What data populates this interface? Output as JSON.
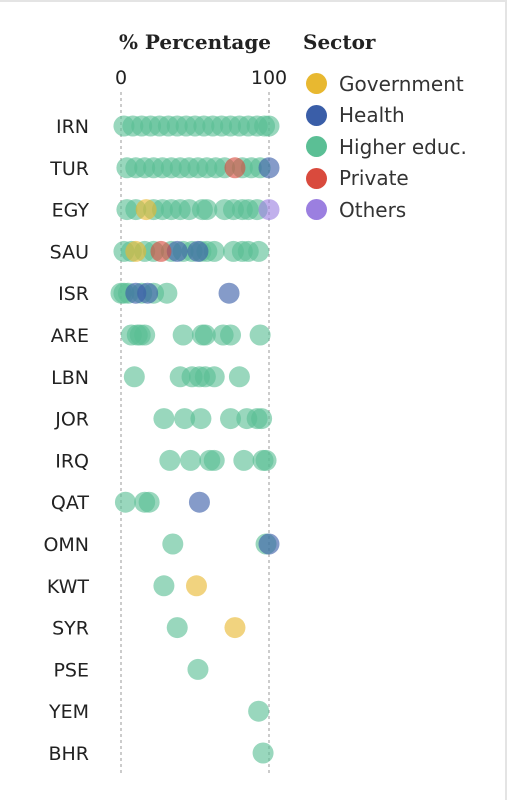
{
  "chart_data": {
    "type": "scatter",
    "xlabel": "% Percentage",
    "xlim": [
      0,
      100
    ],
    "xticks": [
      0,
      100
    ],
    "grid": "vertical dashed at 0 and 100",
    "legend_title": "Sector",
    "legend_position": "top-right",
    "categories": [
      "IRN",
      "TUR",
      "EGY",
      "SAU",
      "ISR",
      "ARE",
      "LBN",
      "JOR",
      "IRQ",
      "QAT",
      "OMN",
      "KWT",
      "SYR",
      "PSE",
      "YEM",
      "BHR"
    ],
    "series": [
      {
        "name": "Government",
        "color": "#e8b830",
        "points": [
          {
            "c": "EGY",
            "x": 17
          },
          {
            "c": "SAU",
            "x": 10
          },
          {
            "c": "KWT",
            "x": 51
          },
          {
            "c": "SYR",
            "x": 77
          }
        ]
      },
      {
        "name": "Health",
        "color": "#3a5ea8",
        "points": [
          {
            "c": "TUR",
            "x": 100
          },
          {
            "c": "SAU",
            "x": 38
          },
          {
            "c": "SAU",
            "x": 52
          },
          {
            "c": "ISR",
            "x": 10
          },
          {
            "c": "ISR",
            "x": 18
          },
          {
            "c": "ISR",
            "x": 73
          },
          {
            "c": "QAT",
            "x": 53
          },
          {
            "c": "OMN",
            "x": 100
          }
        ]
      },
      {
        "name": "Higher educ.",
        "color": "#5bbf95",
        "points": [
          {
            "c": "IRN",
            "x": 2
          },
          {
            "c": "IRN",
            "x": 8
          },
          {
            "c": "IRN",
            "x": 14
          },
          {
            "c": "IRN",
            "x": 20
          },
          {
            "c": "IRN",
            "x": 26
          },
          {
            "c": "IRN",
            "x": 32
          },
          {
            "c": "IRN",
            "x": 38
          },
          {
            "c": "IRN",
            "x": 44
          },
          {
            "c": "IRN",
            "x": 50
          },
          {
            "c": "IRN",
            "x": 56
          },
          {
            "c": "IRN",
            "x": 62
          },
          {
            "c": "IRN",
            "x": 68
          },
          {
            "c": "IRN",
            "x": 74
          },
          {
            "c": "IRN",
            "x": 80
          },
          {
            "c": "IRN",
            "x": 86
          },
          {
            "c": "IRN",
            "x": 92
          },
          {
            "c": "IRN",
            "x": 97
          },
          {
            "c": "IRN",
            "x": 100
          },
          {
            "c": "TUR",
            "x": 4
          },
          {
            "c": "TUR",
            "x": 10
          },
          {
            "c": "TUR",
            "x": 16
          },
          {
            "c": "TUR",
            "x": 22
          },
          {
            "c": "TUR",
            "x": 28
          },
          {
            "c": "TUR",
            "x": 34
          },
          {
            "c": "TUR",
            "x": 40
          },
          {
            "c": "TUR",
            "x": 46
          },
          {
            "c": "TUR",
            "x": 52
          },
          {
            "c": "TUR",
            "x": 58
          },
          {
            "c": "TUR",
            "x": 64
          },
          {
            "c": "TUR",
            "x": 70
          },
          {
            "c": "TUR",
            "x": 82
          },
          {
            "c": "TUR",
            "x": 88
          },
          {
            "c": "TUR",
            "x": 94
          },
          {
            "c": "EGY",
            "x": 4
          },
          {
            "c": "EGY",
            "x": 10
          },
          {
            "c": "EGY",
            "x": 22
          },
          {
            "c": "EGY",
            "x": 28
          },
          {
            "c": "EGY",
            "x": 34
          },
          {
            "c": "EGY",
            "x": 40
          },
          {
            "c": "EGY",
            "x": 46
          },
          {
            "c": "EGY",
            "x": 55
          },
          {
            "c": "EGY",
            "x": 58
          },
          {
            "c": "EGY",
            "x": 70
          },
          {
            "c": "EGY",
            "x": 76
          },
          {
            "c": "EGY",
            "x": 82
          },
          {
            "c": "EGY",
            "x": 86
          },
          {
            "c": "EGY",
            "x": 92
          },
          {
            "c": "SAU",
            "x": 2
          },
          {
            "c": "SAU",
            "x": 7
          },
          {
            "c": "SAU",
            "x": 16
          },
          {
            "c": "SAU",
            "x": 22
          },
          {
            "c": "SAU",
            "x": 34
          },
          {
            "c": "SAU",
            "x": 42
          },
          {
            "c": "SAU",
            "x": 48
          },
          {
            "c": "SAU",
            "x": 54
          },
          {
            "c": "SAU",
            "x": 58
          },
          {
            "c": "SAU",
            "x": 63
          },
          {
            "c": "SAU",
            "x": 76
          },
          {
            "c": "SAU",
            "x": 82
          },
          {
            "c": "SAU",
            "x": 86
          },
          {
            "c": "SAU",
            "x": 93
          },
          {
            "c": "ISR",
            "x": 0
          },
          {
            "c": "ISR",
            "x": 2
          },
          {
            "c": "ISR",
            "x": 5
          },
          {
            "c": "ISR",
            "x": 14
          },
          {
            "c": "ISR",
            "x": 22
          },
          {
            "c": "ISR",
            "x": 31
          },
          {
            "c": "ARE",
            "x": 7
          },
          {
            "c": "ARE",
            "x": 11
          },
          {
            "c": "ARE",
            "x": 13
          },
          {
            "c": "ARE",
            "x": 16
          },
          {
            "c": "ARE",
            "x": 42
          },
          {
            "c": "ARE",
            "x": 55
          },
          {
            "c": "ARE",
            "x": 57
          },
          {
            "c": "ARE",
            "x": 69
          },
          {
            "c": "ARE",
            "x": 74
          },
          {
            "c": "ARE",
            "x": 94
          },
          {
            "c": "LBN",
            "x": 9
          },
          {
            "c": "LBN",
            "x": 40
          },
          {
            "c": "LBN",
            "x": 48
          },
          {
            "c": "LBN",
            "x": 53
          },
          {
            "c": "LBN",
            "x": 57
          },
          {
            "c": "LBN",
            "x": 63
          },
          {
            "c": "LBN",
            "x": 80
          },
          {
            "c": "JOR",
            "x": 29
          },
          {
            "c": "JOR",
            "x": 43
          },
          {
            "c": "JOR",
            "x": 54
          },
          {
            "c": "JOR",
            "x": 74
          },
          {
            "c": "JOR",
            "x": 85
          },
          {
            "c": "JOR",
            "x": 92
          },
          {
            "c": "JOR",
            "x": 95
          },
          {
            "c": "IRQ",
            "x": 33
          },
          {
            "c": "IRQ",
            "x": 47
          },
          {
            "c": "IRQ",
            "x": 60
          },
          {
            "c": "IRQ",
            "x": 63
          },
          {
            "c": "IRQ",
            "x": 83
          },
          {
            "c": "IRQ",
            "x": 96
          },
          {
            "c": "IRQ",
            "x": 98
          },
          {
            "c": "QAT",
            "x": 3
          },
          {
            "c": "QAT",
            "x": 16
          },
          {
            "c": "QAT",
            "x": 19
          },
          {
            "c": "OMN",
            "x": 35
          },
          {
            "c": "OMN",
            "x": 98
          },
          {
            "c": "KWT",
            "x": 29
          },
          {
            "c": "SYR",
            "x": 38
          },
          {
            "c": "PSE",
            "x": 52
          },
          {
            "c": "YEM",
            "x": 93
          },
          {
            "c": "BHR",
            "x": 96
          }
        ]
      },
      {
        "name": "Private",
        "color": "#d94a3d",
        "points": [
          {
            "c": "TUR",
            "x": 77
          },
          {
            "c": "SAU",
            "x": 27
          }
        ]
      },
      {
        "name": "Others",
        "color": "#9b7fe0",
        "points": [
          {
            "c": "EGY",
            "x": 100
          }
        ]
      }
    ]
  }
}
